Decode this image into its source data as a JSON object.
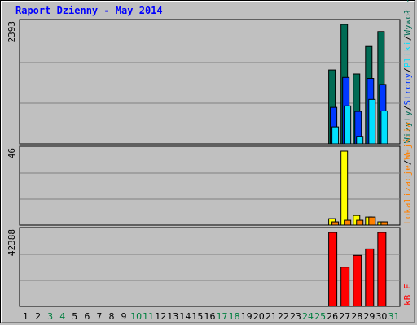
{
  "title": "Raport Dzienny -  May 2014",
  "colors": {
    "wizyty": "#006b54",
    "strony": "#0038ff",
    "pliki": "#00dfff",
    "lokalizacje": "#ffff00",
    "wejscia": "#ff8000",
    "kbf": "#ff0000",
    "weekday_label": "#000000",
    "weekend_label": "#007f3f"
  },
  "chart_data": [
    {
      "type": "bar",
      "panel": "top",
      "x": [
        1,
        2,
        3,
        4,
        5,
        6,
        7,
        8,
        9,
        10,
        11,
        12,
        13,
        14,
        15,
        16,
        17,
        18,
        19,
        20,
        21,
        22,
        23,
        24,
        25,
        26,
        27,
        28,
        29,
        30,
        31
      ],
      "y_tick_label": "2393",
      "ylim": [
        0,
        2393
      ],
      "series": [
        {
          "name": "Wizyty",
          "color": "#006b54",
          "values": [
            0,
            0,
            0,
            0,
            0,
            0,
            0,
            0,
            0,
            0,
            0,
            0,
            0,
            0,
            0,
            0,
            0,
            0,
            0,
            0,
            0,
            0,
            0,
            0,
            0,
            1480,
            2393,
            1400,
            1950,
            2250,
            0
          ]
        },
        {
          "name": "Strony",
          "color": "#0038ff",
          "values": [
            0,
            0,
            0,
            0,
            0,
            0,
            0,
            0,
            0,
            0,
            0,
            0,
            0,
            0,
            0,
            0,
            0,
            0,
            0,
            0,
            0,
            0,
            0,
            0,
            0,
            730,
            1330,
            650,
            1310,
            1190,
            0
          ]
        },
        {
          "name": "Pliki",
          "color": "#00dfff",
          "values": [
            0,
            0,
            0,
            0,
            0,
            0,
            0,
            0,
            0,
            0,
            0,
            0,
            0,
            0,
            0,
            0,
            0,
            0,
            0,
            0,
            0,
            0,
            0,
            0,
            0,
            340,
            760,
            150,
            890,
            660,
            0
          ]
        }
      ],
      "right_label": [
        "Wizyty",
        "Strony",
        "Pliki",
        "Wywoł ania"
      ]
    },
    {
      "type": "bar",
      "panel": "middle",
      "x": [
        1,
        2,
        3,
        4,
        5,
        6,
        7,
        8,
        9,
        10,
        11,
        12,
        13,
        14,
        15,
        16,
        17,
        18,
        19,
        20,
        21,
        22,
        23,
        24,
        25,
        26,
        27,
        28,
        29,
        30,
        31
      ],
      "y_tick_label": "46",
      "ylim": [
        0,
        46
      ],
      "series": [
        {
          "name": "Lokalizacje",
          "color": "#ffff00",
          "values": [
            0,
            0,
            0,
            0,
            0,
            0,
            0,
            0,
            0,
            0,
            0,
            0,
            0,
            0,
            0,
            0,
            0,
            0,
            0,
            0,
            0,
            0,
            0,
            0,
            0,
            4,
            46,
            6,
            5,
            2,
            0
          ]
        },
        {
          "name": "Wejścia",
          "color": "#ff8000",
          "values": [
            0,
            0,
            0,
            0,
            0,
            0,
            0,
            0,
            0,
            0,
            0,
            0,
            0,
            0,
            0,
            0,
            0,
            0,
            0,
            0,
            0,
            0,
            0,
            0,
            0,
            2,
            3,
            3,
            5,
            2,
            0
          ]
        }
      ],
      "right_label": [
        "Lokalizacje",
        "Wejścia"
      ]
    },
    {
      "type": "bar",
      "panel": "bottom",
      "x": [
        1,
        2,
        3,
        4,
        5,
        6,
        7,
        8,
        9,
        10,
        11,
        12,
        13,
        14,
        15,
        16,
        17,
        18,
        19,
        20,
        21,
        22,
        23,
        24,
        25,
        26,
        27,
        28,
        29,
        30,
        31
      ],
      "y_tick_label": "42388",
      "ylim": [
        0,
        42388
      ],
      "series": [
        {
          "name": "kB F",
          "color": "#ff0000",
          "values": [
            0,
            0,
            0,
            0,
            0,
            0,
            0,
            0,
            0,
            0,
            0,
            0,
            0,
            0,
            0,
            0,
            0,
            0,
            0,
            0,
            0,
            0,
            0,
            0,
            0,
            42388,
            22500,
            29200,
            32900,
            42388,
            0
          ]
        }
      ],
      "right_label": [
        "kB F"
      ]
    }
  ],
  "x_labels": [
    "1",
    "2",
    "3",
    "4",
    "5",
    "6",
    "7",
    "8",
    "9",
    "10",
    "11",
    "12",
    "13",
    "14",
    "15",
    "16",
    "17",
    "18",
    "19",
    "20",
    "21",
    "22",
    "23",
    "24",
    "25",
    "26",
    "27",
    "28",
    "29",
    "30",
    "31"
  ],
  "weekend_days": [
    3,
    4,
    10,
    11,
    17,
    18,
    24,
    25,
    31
  ],
  "right_labels_top": [
    "Wywoł ania",
    "/",
    "Pliki",
    "/",
    "Strony",
    "/",
    "Wizyty"
  ],
  "right_labels_mid": [
    "Wejścia",
    "/",
    "Lokalizacje"
  ],
  "right_labels_bot": [
    "kB F"
  ]
}
